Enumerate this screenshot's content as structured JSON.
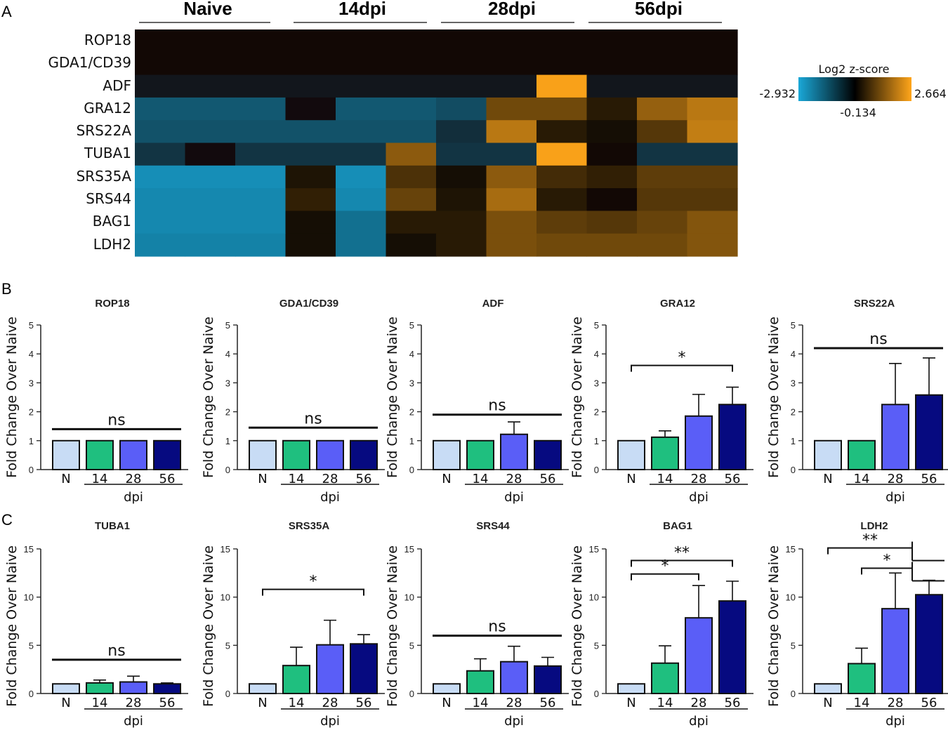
{
  "panels": {
    "a": "A",
    "b": "B",
    "c": "C"
  },
  "heatmap": {
    "groups": [
      "Naive",
      "14dpi",
      "28dpi",
      "56dpi"
    ],
    "genes": [
      "ROP18",
      "GDA1/CD39",
      "ADF",
      "GRA12",
      "SRS22A",
      "TUBA1",
      "SRS35A",
      "SRS44",
      "BAG1",
      "LDH2"
    ],
    "columns_per_group": [
      3,
      3,
      3,
      3
    ],
    "legend": {
      "title": "Log2 z-score",
      "min_label": "-2.932",
      "mid_label": "-0.134",
      "max_label": "2.664",
      "min": -2.932,
      "mid": -0.134,
      "max": 2.664,
      "colors": {
        "low": "#1aa8d8",
        "mid": "#000000",
        "high": "#ffa51a"
      }
    },
    "z": [
      [
        -0.134,
        -0.134,
        -0.134,
        -0.134,
        -0.134,
        -0.134,
        -0.134,
        -0.134,
        -0.134,
        -0.134,
        -0.134,
        -0.134
      ],
      [
        -0.134,
        -0.134,
        -0.134,
        -0.134,
        -0.134,
        -0.134,
        -0.134,
        -0.134,
        -0.134,
        -0.134,
        -0.134,
        -0.134
      ],
      [
        -0.5,
        -0.5,
        -0.5,
        -0.5,
        -0.5,
        -0.5,
        -0.5,
        -0.5,
        2.6,
        -0.5,
        -0.5,
        -0.5
      ],
      [
        -1.6,
        -1.6,
        -1.6,
        -0.3,
        -1.6,
        -1.6,
        -1.4,
        1.1,
        1.1,
        0.3,
        1.5,
        1.9
      ],
      [
        -1.5,
        -1.5,
        -1.5,
        -1.5,
        -1.5,
        -1.5,
        -0.9,
        1.9,
        0.3,
        0.1,
        0.8,
        2.0
      ],
      [
        -1.0,
        -0.3,
        -1.0,
        -1.0,
        -1.0,
        1.4,
        -1.0,
        -1.0,
        2.6,
        -0.2,
        -1.0,
        -1.0
      ],
      [
        -2.5,
        -2.5,
        -2.5,
        0.2,
        -2.5,
        0.7,
        0.1,
        1.4,
        0.6,
        0.4,
        0.9,
        0.9
      ],
      [
        -2.4,
        -2.4,
        -2.4,
        0.4,
        -2.4,
        1.0,
        0.2,
        1.7,
        0.3,
        -0.1,
        0.8,
        0.8
      ],
      [
        -2.4,
        -2.4,
        -2.4,
        0.1,
        -2.0,
        0.3,
        0.3,
        1.2,
        0.9,
        0.8,
        1.0,
        1.3
      ],
      [
        -2.3,
        -2.3,
        -2.3,
        0.1,
        -2.0,
        0.1,
        0.3,
        1.2,
        1.1,
        1.1,
        1.1,
        1.3
      ]
    ]
  },
  "chart_data": [
    {
      "type": "bar",
      "title": "ROP18",
      "categories": [
        "N",
        "14",
        "28",
        "56"
      ],
      "values": [
        1.0,
        1.0,
        1.0,
        1.0
      ],
      "errors": [
        0,
        0,
        0,
        0
      ],
      "ylabel": "Fold Change Over Naive",
      "xlabel": "dpi",
      "ylim": [
        0,
        5
      ],
      "yticks": [
        0,
        1,
        2,
        3,
        4,
        5
      ],
      "sig": [
        {
          "label": "ns",
          "from": 0,
          "to": 3,
          "y": 1.4,
          "style": "line"
        }
      ]
    },
    {
      "type": "bar",
      "title": "GDA1/CD39",
      "categories": [
        "N",
        "14",
        "28",
        "56"
      ],
      "values": [
        1.0,
        1.0,
        1.0,
        1.0
      ],
      "errors": [
        0,
        0,
        0,
        0
      ],
      "ylabel": "Fold Change Over Naive",
      "xlabel": "dpi",
      "ylim": [
        0,
        5
      ],
      "yticks": [
        0,
        1,
        2,
        3,
        4,
        5
      ],
      "sig": [
        {
          "label": "ns",
          "from": 0,
          "to": 3,
          "y": 1.45,
          "style": "line"
        }
      ]
    },
    {
      "type": "bar",
      "title": "ADF",
      "categories": [
        "N",
        "14",
        "28",
        "56"
      ],
      "values": [
        1.0,
        1.0,
        1.22,
        1.0
      ],
      "errors": [
        0,
        0,
        0.43,
        0
      ],
      "ylabel": "Fold Change Over Naive",
      "xlabel": "dpi",
      "ylim": [
        0,
        5
      ],
      "yticks": [
        0,
        1,
        2,
        3,
        4,
        5
      ],
      "sig": [
        {
          "label": "ns",
          "from": 0,
          "to": 3,
          "y": 1.9,
          "style": "line"
        }
      ]
    },
    {
      "type": "bar",
      "title": "GRA12",
      "categories": [
        "N",
        "14",
        "28",
        "56"
      ],
      "values": [
        1.0,
        1.12,
        1.85,
        2.25
      ],
      "errors": [
        0,
        0.22,
        0.75,
        0.6
      ],
      "ylabel": "Fold Change Over Naive",
      "xlabel": "dpi",
      "ylim": [
        0,
        5
      ],
      "yticks": [
        0,
        1,
        2,
        3,
        4,
        5
      ],
      "sig": [
        {
          "label": "*",
          "from": 0,
          "to": 3,
          "y": 3.6,
          "style": "bracket"
        }
      ]
    },
    {
      "type": "bar",
      "title": "SRS22A",
      "categories": [
        "N",
        "14",
        "28",
        "56"
      ],
      "values": [
        1.0,
        1.0,
        2.25,
        2.58
      ],
      "errors": [
        0,
        0,
        1.42,
        1.28
      ],
      "ylabel": "Fold Change Over Naive",
      "xlabel": "dpi",
      "ylim": [
        0,
        5
      ],
      "yticks": [
        0,
        1,
        2,
        3,
        4,
        5
      ],
      "sig": [
        {
          "label": "ns",
          "from": 0,
          "to": 3,
          "y": 4.2,
          "style": "line"
        }
      ]
    },
    {
      "type": "bar",
      "title": "TUBA1",
      "categories": [
        "N",
        "14",
        "28",
        "56"
      ],
      "values": [
        1.0,
        1.1,
        1.2,
        1.0
      ],
      "errors": [
        0,
        0.3,
        0.6,
        0.1
      ],
      "ylabel": "Fold Change Over Naive",
      "xlabel": "dpi",
      "ylim": [
        0,
        15
      ],
      "yticks": [
        0,
        5,
        10,
        15
      ],
      "sig": [
        {
          "label": "ns",
          "from": 0,
          "to": 3,
          "y": 3.5,
          "style": "line"
        }
      ]
    },
    {
      "type": "bar",
      "title": "SRS35A",
      "categories": [
        "N",
        "14",
        "28",
        "56"
      ],
      "values": [
        1.0,
        2.9,
        5.05,
        5.15
      ],
      "errors": [
        0,
        1.9,
        2.55,
        0.95
      ],
      "ylabel": "Fold Change Over Naive",
      "xlabel": "dpi",
      "ylim": [
        0,
        15
      ],
      "yticks": [
        0,
        5,
        10,
        15
      ],
      "sig": [
        {
          "label": "*",
          "from": 0,
          "to": 3,
          "y": 10.8,
          "style": "bracket"
        }
      ]
    },
    {
      "type": "bar",
      "title": "SRS44",
      "categories": [
        "N",
        "14",
        "28",
        "56"
      ],
      "values": [
        1.0,
        2.35,
        3.3,
        2.85
      ],
      "errors": [
        0,
        1.25,
        1.6,
        0.9
      ],
      "ylabel": "Fold Change Over Naive",
      "xlabel": "dpi",
      "ylim": [
        0,
        15
      ],
      "yticks": [
        0,
        5,
        10,
        15
      ],
      "sig": [
        {
          "label": "ns",
          "from": 0,
          "to": 3,
          "y": 6.0,
          "style": "line"
        }
      ]
    },
    {
      "type": "bar",
      "title": "BAG1",
      "categories": [
        "N",
        "14",
        "28",
        "56"
      ],
      "values": [
        1.0,
        3.15,
        7.85,
        9.6
      ],
      "errors": [
        0,
        1.8,
        3.35,
        2.05
      ],
      "ylabel": "Fold Change Over Naive",
      "xlabel": "dpi",
      "ylim": [
        0,
        15
      ],
      "yticks": [
        0,
        5,
        10,
        15
      ],
      "sig": [
        {
          "label": "*",
          "from": 0,
          "to": 2,
          "y": 12.4,
          "style": "bracket"
        },
        {
          "label": "**",
          "from": 0,
          "to": 3,
          "y": 13.8,
          "style": "bracket"
        }
      ]
    },
    {
      "type": "bar",
      "title": "LDH2",
      "categories": [
        "N",
        "14",
        "28",
        "56"
      ],
      "values": [
        1.0,
        3.1,
        8.8,
        10.25
      ],
      "errors": [
        0,
        1.6,
        3.7,
        1.5
      ],
      "ylabel": "Fold Change Over Naive",
      "xlabel": "dpi",
      "ylim": [
        0,
        15
      ],
      "yticks": [
        0,
        5,
        10,
        15
      ],
      "sig": [
        {
          "label": "*",
          "from": 1,
          "to": 2.5,
          "y": 13.0,
          "style": "fork"
        },
        {
          "label": "**",
          "from": 0,
          "to": 2.5,
          "y": 15.1,
          "style": "fork"
        }
      ]
    }
  ],
  "bar_colors": [
    "#c8dcf5",
    "#1fbf7f",
    "#5a5ef7",
    "#060a80"
  ]
}
